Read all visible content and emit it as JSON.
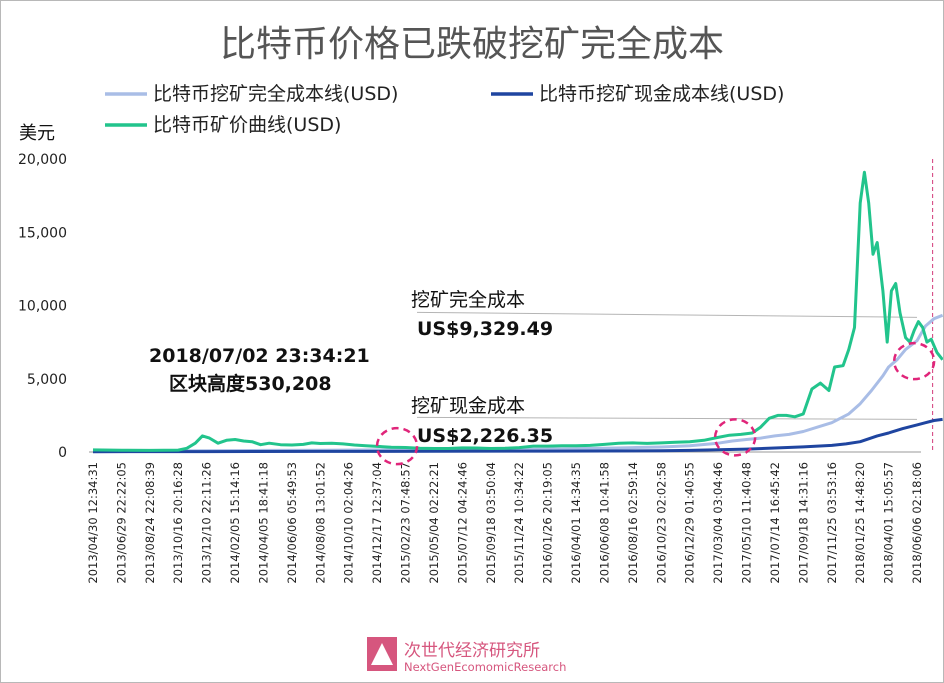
{
  "chart_data": {
    "type": "line",
    "title": "比特币价格已跌破挖矿完全成本",
    "ylabel": "美元",
    "ylim": [
      0,
      20000
    ],
    "yticks": [
      "0",
      "5,000",
      "10,000",
      "15,000",
      "20,000"
    ],
    "grid": false,
    "legend_position": "top",
    "x_tick_labels": [
      "2013/04/30 12:34:31",
      "2013/06/29 22:22:05",
      "2013/08/24 22:08:39",
      "2013/10/16 20:16:28",
      "2013/12/10 22:11:26",
      "2014/02/05 15:14:16",
      "2014/04/05 18:41:18",
      "2014/06/06 05:49:53",
      "2014/08/08 13:01:52",
      "2014/10/10 02:04:26",
      "2014/12/17 12:37:04",
      "2015/02/23 07:48:57",
      "2015/05/04 02:22:21",
      "2015/07/12 04:24:46",
      "2015/09/18 03:50:04",
      "2015/11/24 10:34:22",
      "2016/01/26 20:19:05",
      "2016/04/01 14:34:35",
      "2016/06/08 10:41:58",
      "2016/08/16 02:59:14",
      "2016/10/23 02:02:58",
      "2016/12/29 01:40:55",
      "2017/03/04 03:04:46",
      "2017/05/10 11:40:48",
      "2017/07/14 16:45:42",
      "2017/09/18 14:31:16",
      "2017/11/25 03:53:16",
      "2018/01/25 14:48:20",
      "2018/04/01 15:05:57",
      "2018/06/06 02:18:06"
    ],
    "series": [
      {
        "name": "比特币挖矿完全成本线(USD)",
        "color": "#a9bde6",
        "style": "line",
        "points": [
          [
            0,
            60
          ],
          [
            2,
            70
          ],
          [
            4,
            90
          ],
          [
            6,
            110
          ],
          [
            8,
            120
          ],
          [
            10,
            140
          ],
          [
            12,
            160
          ],
          [
            14,
            170
          ],
          [
            16,
            200
          ],
          [
            17,
            230
          ],
          [
            18,
            260
          ],
          [
            19,
            300
          ],
          [
            20,
            340
          ],
          [
            21,
            420
          ],
          [
            22,
            600
          ],
          [
            22.5,
            750
          ],
          [
            23,
            850
          ],
          [
            23.5,
            950
          ],
          [
            24,
            1100
          ],
          [
            24.5,
            1200
          ],
          [
            25,
            1400
          ],
          [
            25.5,
            1700
          ],
          [
            26,
            2000
          ],
          [
            26.3,
            2300
          ],
          [
            26.6,
            2600
          ],
          [
            27,
            3300
          ],
          [
            27.4,
            4200
          ],
          [
            27.8,
            5200
          ],
          [
            28,
            5800
          ],
          [
            28.3,
            6300
          ],
          [
            28.6,
            7000
          ],
          [
            29,
            7600
          ],
          [
            29.3,
            8600
          ],
          [
            29.6,
            9100
          ],
          [
            29.9,
            9329.49
          ]
        ]
      },
      {
        "name": "比特币挖矿现金成本线(USD)",
        "color": "#1f45a0",
        "style": "line",
        "points": [
          [
            0,
            20
          ],
          [
            4,
            30
          ],
          [
            8,
            40
          ],
          [
            12,
            50
          ],
          [
            16,
            60
          ],
          [
            18,
            70
          ],
          [
            20,
            90
          ],
          [
            21,
            110
          ],
          [
            22,
            150
          ],
          [
            23,
            200
          ],
          [
            24,
            270
          ],
          [
            25,
            350
          ],
          [
            26,
            450
          ],
          [
            26.5,
            550
          ],
          [
            27,
            700
          ],
          [
            27.3,
            900
          ],
          [
            27.6,
            1100
          ],
          [
            28,
            1300
          ],
          [
            28.5,
            1600
          ],
          [
            29,
            1850
          ],
          [
            29.3,
            2000
          ],
          [
            29.6,
            2150
          ],
          [
            29.9,
            2226.35
          ]
        ]
      },
      {
        "name": "比特币矿价曲线(USD)",
        "color": "#22c48c",
        "style": "line",
        "points": [
          [
            0,
            140
          ],
          [
            1,
            120
          ],
          [
            2,
            110
          ],
          [
            3,
            130
          ],
          [
            3.3,
            250
          ],
          [
            3.6,
            600
          ],
          [
            3.85,
            1100
          ],
          [
            4.1,
            950
          ],
          [
            4.4,
            600
          ],
          [
            4.7,
            800
          ],
          [
            5,
            850
          ],
          [
            5.3,
            750
          ],
          [
            5.6,
            700
          ],
          [
            5.9,
            500
          ],
          [
            6.2,
            600
          ],
          [
            6.6,
            500
          ],
          [
            7,
            480
          ],
          [
            7.4,
            520
          ],
          [
            7.7,
            620
          ],
          [
            8,
            580
          ],
          [
            8.4,
            600
          ],
          [
            8.8,
            550
          ],
          [
            9.2,
            480
          ],
          [
            9.6,
            420
          ],
          [
            10,
            380
          ],
          [
            10.5,
            330
          ],
          [
            11,
            310
          ],
          [
            11.5,
            260
          ],
          [
            12,
            240
          ],
          [
            12.5,
            240
          ],
          [
            13,
            280
          ],
          [
            13.5,
            270
          ],
          [
            14,
            240
          ],
          [
            14.5,
            250
          ],
          [
            15,
            300
          ],
          [
            15.5,
            400
          ],
          [
            16,
            400
          ],
          [
            16.5,
            430
          ],
          [
            17,
            420
          ],
          [
            17.5,
            450
          ],
          [
            18,
            520
          ],
          [
            18.5,
            600
          ],
          [
            19,
            620
          ],
          [
            19.5,
            590
          ],
          [
            20,
            620
          ],
          [
            20.5,
            660
          ],
          [
            21,
            700
          ],
          [
            21.5,
            800
          ],
          [
            22,
            1000
          ],
          [
            22.4,
            1150
          ],
          [
            22.8,
            1200
          ],
          [
            23.2,
            1300
          ],
          [
            23.5,
            1700
          ],
          [
            23.8,
            2300
          ],
          [
            24.1,
            2500
          ],
          [
            24.4,
            2500
          ],
          [
            24.7,
            2400
          ],
          [
            25,
            2600
          ],
          [
            25.3,
            4300
          ],
          [
            25.6,
            4700
          ],
          [
            25.9,
            4200
          ],
          [
            26.1,
            5800
          ],
          [
            26.4,
            5900
          ],
          [
            26.6,
            7000
          ],
          [
            26.8,
            8500
          ],
          [
            27,
            17000
          ],
          [
            27.15,
            19100
          ],
          [
            27.3,
            17000
          ],
          [
            27.45,
            13500
          ],
          [
            27.6,
            14300
          ],
          [
            27.8,
            11000
          ],
          [
            27.95,
            7500
          ],
          [
            28.1,
            11000
          ],
          [
            28.25,
            11500
          ],
          [
            28.4,
            9500
          ],
          [
            28.6,
            7800
          ],
          [
            28.75,
            7500
          ],
          [
            28.9,
            8300
          ],
          [
            29.05,
            8900
          ],
          [
            29.2,
            8500
          ],
          [
            29.35,
            7500
          ],
          [
            29.5,
            7700
          ],
          [
            29.7,
            6800
          ],
          [
            29.9,
            6300
          ]
        ]
      }
    ],
    "annotations": {
      "date_note": "2018/07/02 23:34:21",
      "block_note": "区块高度530,208",
      "full_cost_label": "挖矿完全成本",
      "full_cost_value": "US$9,329.49",
      "cash_cost_label": "挖矿现金成本",
      "cash_cost_value": "US$2,226.35",
      "full_cost": 9329.49,
      "cash_cost": 2226.35
    },
    "highlight_circles": [
      {
        "x": 10.7,
        "y": 400
      },
      {
        "x": 22.6,
        "y": 1000
      },
      {
        "x": 28.9,
        "y": 6200
      }
    ]
  },
  "branding": {
    "name_cn": "次世代经济研究所",
    "name_en": "NextGenEcomomicResearch",
    "logo_icon": "triangle-icon",
    "accent_color": "#d6567e"
  }
}
